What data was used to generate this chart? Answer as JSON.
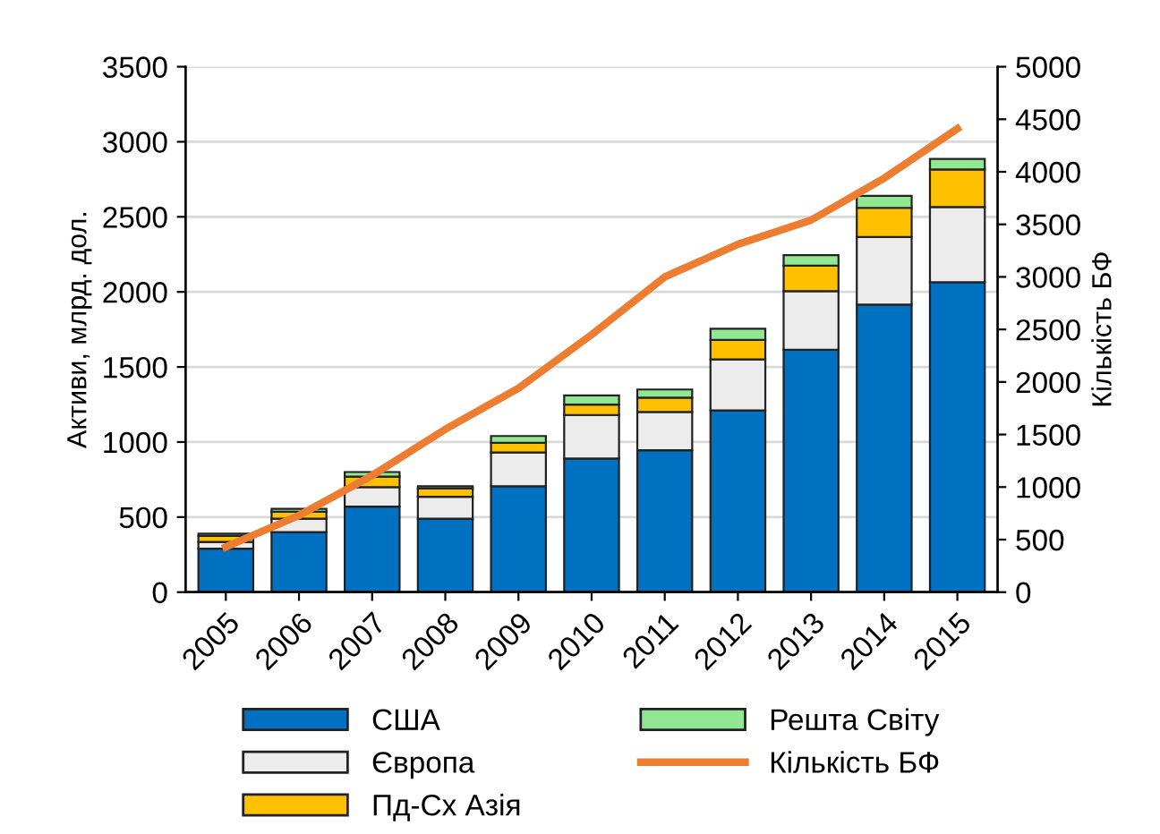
{
  "chart_data": {
    "type": "bar",
    "stacked": true,
    "ylabel": "Активи, млрд. дол.",
    "y2label": "Кількість БФ",
    "categories": [
      "2005",
      "2006",
      "2007",
      "2008",
      "2009",
      "2010",
      "2011",
      "2012",
      "2013",
      "2014",
      "2015"
    ],
    "series": [
      {
        "name": "США",
        "color": "#0070c0",
        "values": [
          290,
          400,
          570,
          490,
          705,
          890,
          945,
          1210,
          1615,
          1915,
          2065
        ]
      },
      {
        "name": "Європа",
        "color": "#ececec",
        "values": [
          45,
          90,
          130,
          145,
          225,
          290,
          255,
          340,
          390,
          450,
          500
        ]
      },
      {
        "name": "Пд-Сх Азія",
        "color": "#ffc000",
        "values": [
          40,
          45,
          70,
          55,
          65,
          70,
          95,
          130,
          170,
          195,
          250
        ]
      },
      {
        "name": "Решта Світу",
        "color": "#92e892",
        "values": [
          15,
          20,
          30,
          15,
          45,
          60,
          55,
          75,
          70,
          80,
          70
        ]
      },
      {
        "name": "Кількість БФ",
        "color": "#ed7d31",
        "type": "line",
        "axis": "y2",
        "marker": "none",
        "values": [
          430,
          730,
          1110,
          1550,
          1940,
          2450,
          3000,
          3310,
          3540,
          3940,
          4410
        ]
      }
    ],
    "ylim": [
      0,
      3500
    ],
    "yticks": [
      0,
      500,
      1000,
      1500,
      2000,
      2500,
      3000,
      3500
    ],
    "y2lim": [
      0,
      5000
    ],
    "y2ticks": [
      0,
      500,
      1000,
      1500,
      2000,
      2500,
      3000,
      3500,
      4000,
      4500,
      5000
    ],
    "grid": "y",
    "legend": "bottom"
  }
}
